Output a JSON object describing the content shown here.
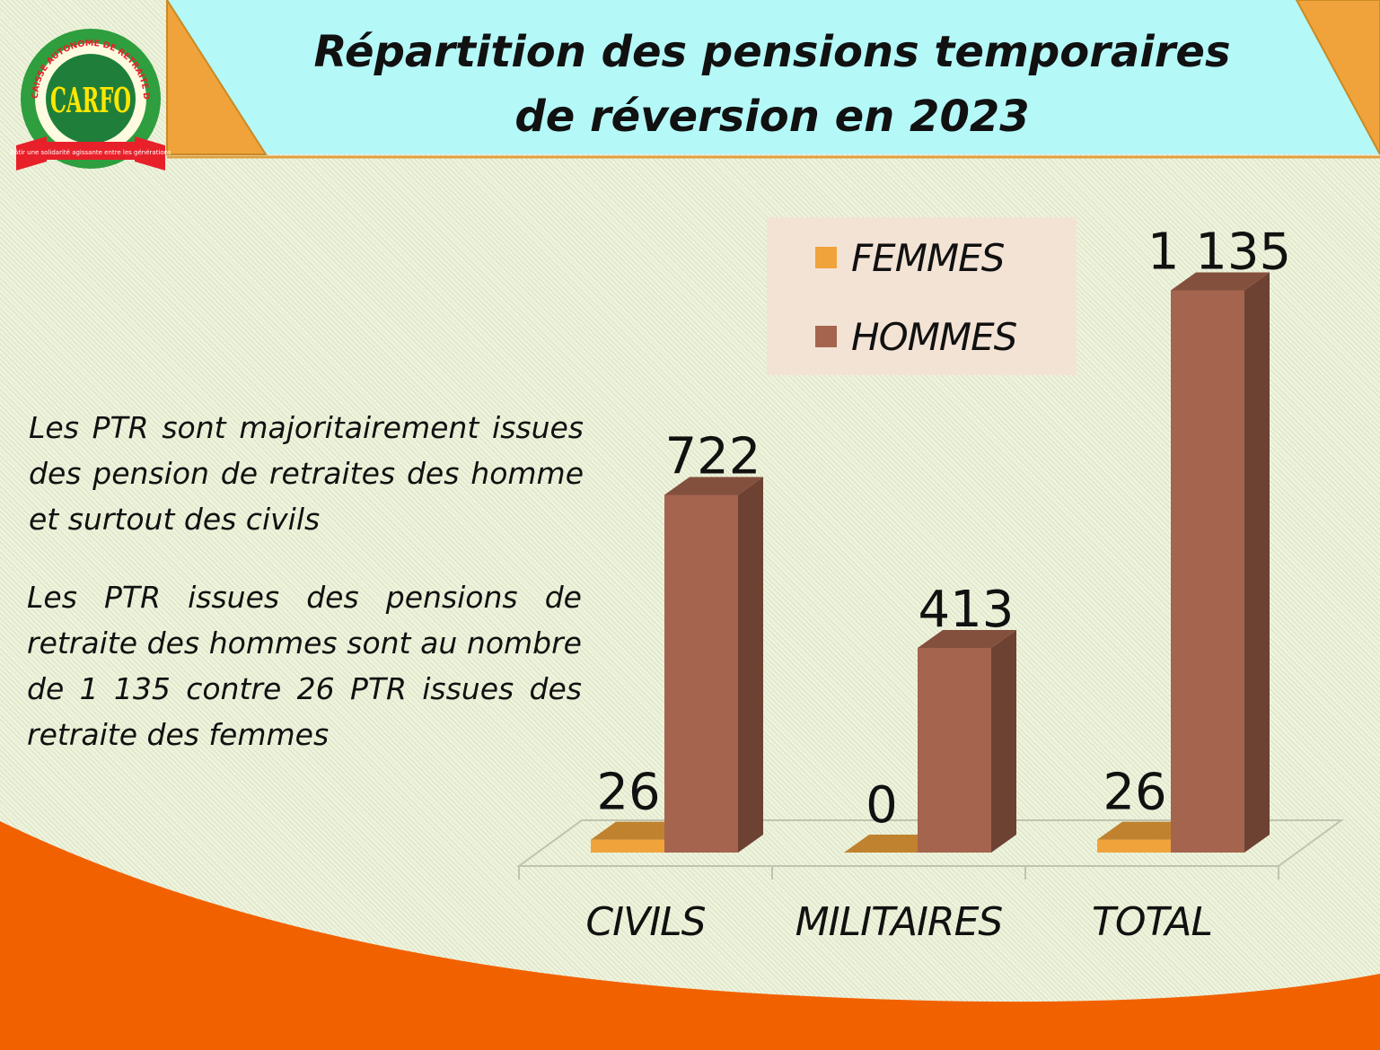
{
  "title": {
    "line1": "Répartition des pensions temporaires",
    "line2": "de réversion en 2023"
  },
  "logo": {
    "text": "CAISSE AUTONOME DE RETRAITE DES FONCTIONNAIRES",
    "acronym": "CARFO",
    "tagline": "Bâtir une solidarité agissante entre les générations"
  },
  "comments": {
    "para1": "Les  PTR sont majoritairement issues des pension de retraites des homme et surtout des civils",
    "para2": "Les  PTR issues des pensions de retraite des hommes sont au nombre de 1 135 contre 26 PTR issues des retraite des femmes"
  },
  "colors": {
    "femmes": "#f0a33a",
    "hommes": "#a5644e",
    "banner": "#b4f8f8",
    "wave": "#f26100"
  },
  "chart_data": {
    "type": "bar",
    "categories": [
      "CIVILS",
      "MILITAIRES",
      "TOTAL"
    ],
    "series": [
      {
        "name": "FEMMES",
        "values": [
          26,
          0,
          26
        ],
        "labels": [
          "26",
          "0",
          "26"
        ]
      },
      {
        "name": "HOMMES",
        "values": [
          722,
          413,
          1135
        ],
        "labels": [
          "722",
          "413",
          "1 135"
        ]
      }
    ],
    "legend": "top-right",
    "grid": false
  }
}
